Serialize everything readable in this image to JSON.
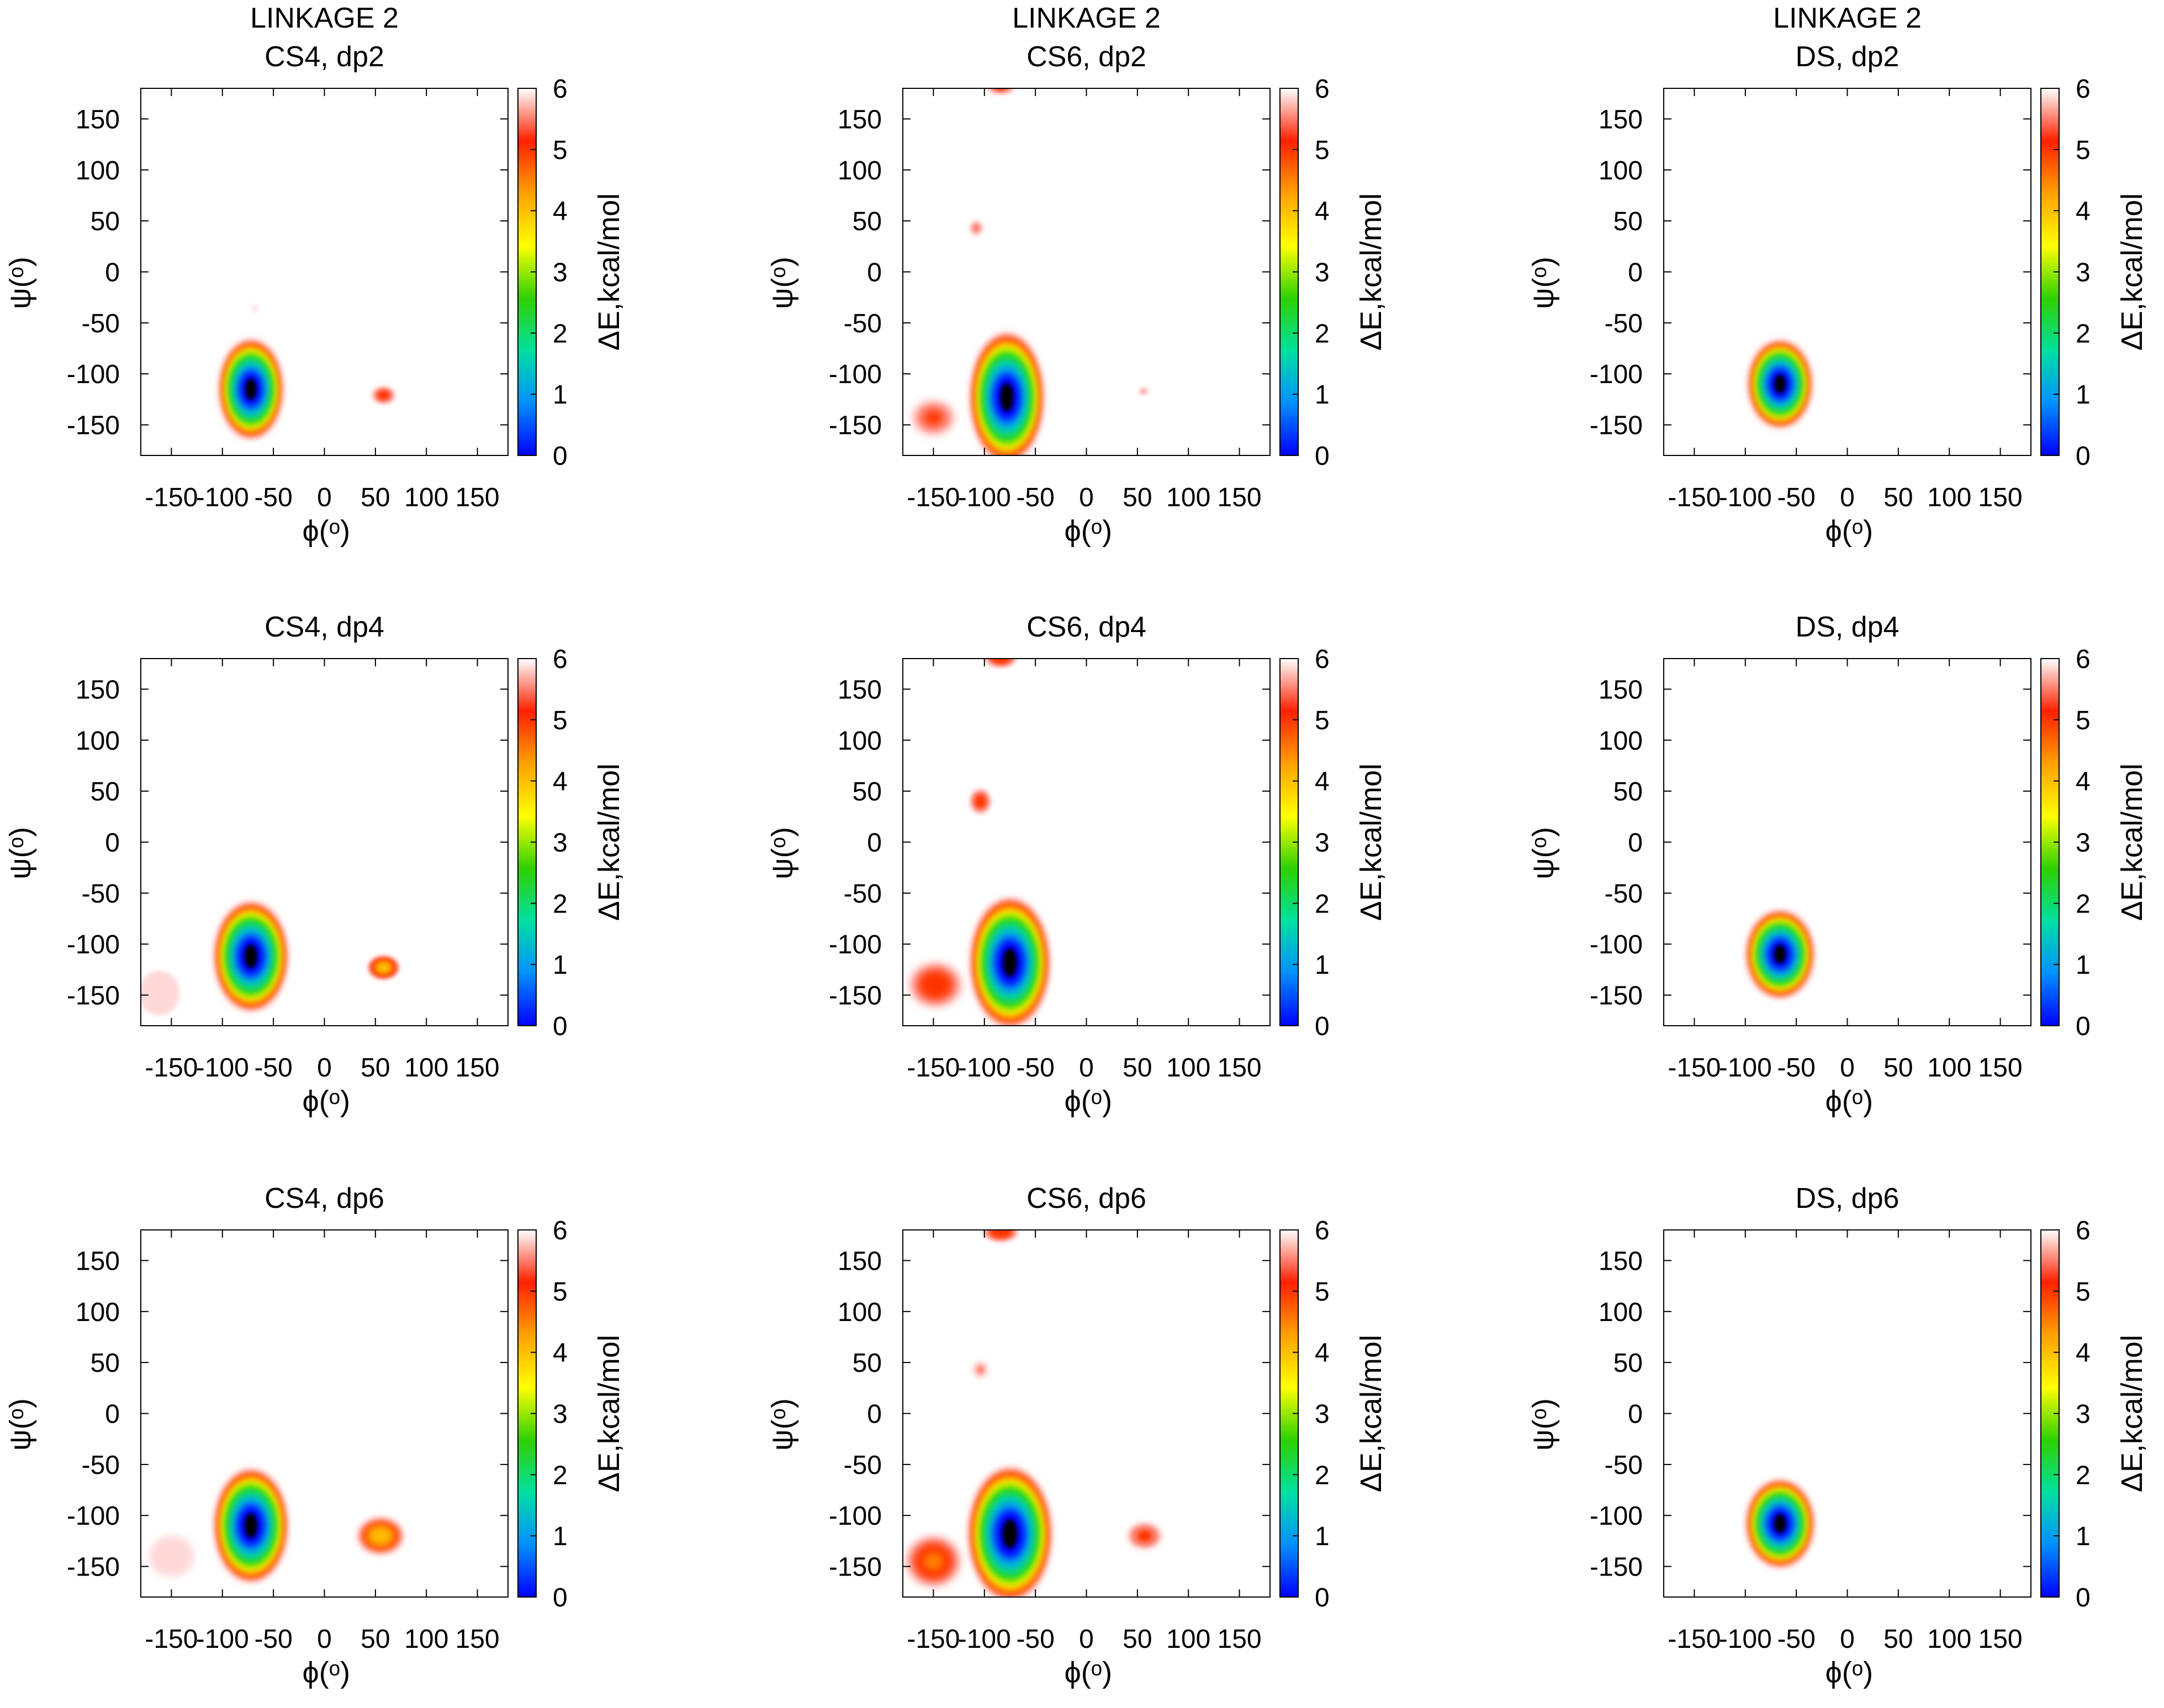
{
  "figure": {
    "colorbar": {
      "label": "ΔE,kcal/mol",
      "ticks": [
        "0",
        "1",
        "2",
        "3",
        "4",
        "5",
        "6"
      ],
      "range": [
        0,
        6
      ],
      "gradient": [
        "#0000ff",
        "#0090ff",
        "#00e0a0",
        "#30d000",
        "#ffff00",
        "#ffa000",
        "#ff2000",
        "#ffffff"
      ]
    }
  },
  "chart_data": [
    {
      "type": "heatmap",
      "title_lines": [
        "LINKAGE 2",
        "CS4, dp2"
      ],
      "xlabel": "ϕ(ᵒ)",
      "ylabel": "ψ(ᵒ)",
      "xlim": [
        -180,
        180
      ],
      "ylim": [
        -180,
        180
      ],
      "xticks": [
        -150,
        -100,
        -50,
        0,
        50,
        100,
        150
      ],
      "yticks": [
        -150,
        -100,
        -50,
        0,
        50,
        100,
        150
      ],
      "colorbar_label": "ΔE,kcal/mol",
      "zlim": [
        0,
        6
      ],
      "regions": [
        {
          "phi": -72,
          "psi": -115,
          "phi_half": 30,
          "psi_half": 48,
          "min_energy": 0.0
        },
        {
          "phi": 58,
          "psi": -121,
          "phi_half": 12,
          "psi_half": 9,
          "min_energy": 4.8
        },
        {
          "phi": -68,
          "psi": -36,
          "phi_half": 3,
          "psi_half": 3,
          "min_energy": 5.8
        }
      ]
    },
    {
      "type": "heatmap",
      "title_lines": [
        "LINKAGE 2",
        "CS6, dp2"
      ],
      "xlabel": "ϕ(ᵒ)",
      "ylabel": "ψ(ᵒ)",
      "xlim": [
        -180,
        180
      ],
      "ylim": [
        -180,
        180
      ],
      "xticks": [
        -150,
        -100,
        -50,
        0,
        50,
        100,
        150
      ],
      "yticks": [
        -150,
        -100,
        -50,
        0,
        50,
        100,
        150
      ],
      "colorbar_label": "ΔE,kcal/mol",
      "zlim": [
        0,
        6
      ],
      "regions": [
        {
          "phi": -78,
          "psi": -123,
          "phi_half": 35,
          "psi_half": 63,
          "min_energy": 0.0
        },
        {
          "phi": -150,
          "psi": -143,
          "phi_half": 22,
          "psi_half": 18,
          "min_energy": 4.9
        },
        {
          "phi": -84,
          "psi": 180,
          "phi_half": 14,
          "psi_half": 6,
          "min_energy": 5.0
        },
        {
          "phi": -108,
          "psi": 43,
          "phi_half": 7,
          "psi_half": 8,
          "min_energy": 5.3
        },
        {
          "phi": 56,
          "psi": -117,
          "phi_half": 5,
          "psi_half": 4,
          "min_energy": 5.4
        }
      ]
    },
    {
      "type": "heatmap",
      "title_lines": [
        "LINKAGE 2",
        "DS, dp2"
      ],
      "xlabel": "ϕ(ᵒ)",
      "ylabel": "ψ(ᵒ)",
      "xlim": [
        -180,
        180
      ],
      "ylim": [
        -180,
        180
      ],
      "xticks": [
        -150,
        -100,
        -50,
        0,
        50,
        100,
        150
      ],
      "yticks": [
        -150,
        -100,
        -50,
        0,
        50,
        100,
        150
      ],
      "colorbar_label": "ΔE,kcal/mol",
      "zlim": [
        0,
        6
      ],
      "regions": [
        {
          "phi": -66,
          "psi": -110,
          "phi_half": 30,
          "psi_half": 42,
          "min_energy": 0.0
        }
      ]
    },
    {
      "type": "heatmap",
      "title_lines": [
        "CS4, dp4"
      ],
      "xlabel": "ϕ(ᵒ)",
      "ylabel": "ψ(ᵒ)",
      "xlim": [
        -180,
        180
      ],
      "ylim": [
        -180,
        180
      ],
      "xticks": [
        -150,
        -100,
        -50,
        0,
        50,
        100,
        150
      ],
      "yticks": [
        -150,
        -100,
        -50,
        0,
        50,
        100,
        150
      ],
      "colorbar_label": "ΔE,kcal/mol",
      "zlim": [
        0,
        6
      ],
      "regions": [
        {
          "phi": -72,
          "psi": -112,
          "phi_half": 35,
          "psi_half": 53,
          "min_energy": 0.0
        },
        {
          "phi": 58,
          "psi": -123,
          "phi_half": 16,
          "psi_half": 12,
          "min_energy": 3.8
        },
        {
          "phi": -162,
          "psi": -148,
          "phi_half": 20,
          "psi_half": 22,
          "min_energy": 5.6
        }
      ]
    },
    {
      "type": "heatmap",
      "title_lines": [
        "CS6, dp4"
      ],
      "xlabel": "ϕ(ᵒ)",
      "ylabel": "ψ(ᵒ)",
      "xlim": [
        -180,
        180
      ],
      "ylim": [
        -180,
        180
      ],
      "xticks": [
        -150,
        -100,
        -50,
        0,
        50,
        100,
        150
      ],
      "yticks": [
        -150,
        -100,
        -50,
        0,
        50,
        100,
        150
      ],
      "colorbar_label": "ΔE,kcal/mol",
      "zlim": [
        0,
        6
      ],
      "regions": [
        {
          "phi": -75,
          "psi": -118,
          "phi_half": 38,
          "psi_half": 63,
          "min_energy": 0.0
        },
        {
          "phi": -148,
          "psi": -140,
          "phi_half": 27,
          "psi_half": 23,
          "min_energy": 4.6
        },
        {
          "phi": -84,
          "psi": 180,
          "phi_half": 16,
          "psi_half": 9,
          "min_energy": 4.6
        },
        {
          "phi": -104,
          "psi": 40,
          "phi_half": 11,
          "psi_half": 13,
          "min_energy": 4.8
        }
      ]
    },
    {
      "type": "heatmap",
      "title_lines": [
        "DS, dp4"
      ],
      "xlabel": "ϕ(ᵒ)",
      "ylabel": "ψ(ᵒ)",
      "xlim": [
        -180,
        180
      ],
      "ylim": [
        -180,
        180
      ],
      "xticks": [
        -150,
        -100,
        -50,
        0,
        50,
        100,
        150
      ],
      "yticks": [
        -150,
        -100,
        -50,
        0,
        50,
        100,
        150
      ],
      "colorbar_label": "ΔE,kcal/mol",
      "zlim": [
        0,
        6
      ],
      "regions": [
        {
          "phi": -66,
          "psi": -110,
          "phi_half": 32,
          "psi_half": 42,
          "min_energy": 0.0
        }
      ]
    },
    {
      "type": "heatmap",
      "title_lines": [
        "CS4, dp6"
      ],
      "xlabel": "ϕ(ᵒ)",
      "ylabel": "ψ(ᵒ)",
      "xlim": [
        -180,
        180
      ],
      "ylim": [
        -180,
        180
      ],
      "xticks": [
        -150,
        -100,
        -50,
        0,
        50,
        100,
        150
      ],
      "yticks": [
        -150,
        -100,
        -50,
        0,
        50,
        100,
        150
      ],
      "colorbar_label": "ΔE,kcal/mol",
      "zlim": [
        0,
        6
      ],
      "regions": [
        {
          "phi": -72,
          "psi": -110,
          "phi_half": 35,
          "psi_half": 55,
          "min_energy": 0.0
        },
        {
          "phi": 55,
          "psi": -120,
          "phi_half": 22,
          "psi_half": 17,
          "min_energy": 3.6
        },
        {
          "phi": -150,
          "psi": -140,
          "phi_half": 22,
          "psi_half": 20,
          "min_energy": 5.8
        }
      ]
    },
    {
      "type": "heatmap",
      "title_lines": [
        "CS6, dp6"
      ],
      "xlabel": "ϕ(ᵒ)",
      "ylabel": "ψ(ᵒ)",
      "xlim": [
        -180,
        180
      ],
      "ylim": [
        -180,
        180
      ],
      "xticks": [
        -150,
        -100,
        -50,
        0,
        50,
        100,
        150
      ],
      "yticks": [
        -150,
        -100,
        -50,
        0,
        50,
        100,
        150
      ],
      "colorbar_label": "ΔE,kcal/mol",
      "zlim": [
        0,
        6
      ],
      "regions": [
        {
          "phi": -75,
          "psi": -118,
          "phi_half": 40,
          "psi_half": 65,
          "min_energy": 0.0
        },
        {
          "phi": -150,
          "psi": -145,
          "phi_half": 28,
          "psi_half": 26,
          "min_energy": 4.4
        },
        {
          "phi": -84,
          "psi": 178,
          "phi_half": 18,
          "psi_half": 10,
          "min_energy": 4.6
        },
        {
          "phi": 57,
          "psi": -120,
          "phi_half": 18,
          "psi_half": 14,
          "min_energy": 4.9
        },
        {
          "phi": -104,
          "psi": 43,
          "phi_half": 8,
          "psi_half": 9,
          "min_energy": 5.4
        }
      ]
    },
    {
      "type": "heatmap",
      "title_lines": [
        "DS, dp6"
      ],
      "xlabel": "ϕ(ᵒ)",
      "ylabel": "ψ(ᵒ)",
      "xlim": [
        -180,
        180
      ],
      "ylim": [
        -180,
        180
      ],
      "xticks": [
        -150,
        -100,
        -50,
        0,
        50,
        100,
        150
      ],
      "yticks": [
        -150,
        -100,
        -50,
        0,
        50,
        100,
        150
      ],
      "colorbar_label": "ΔE,kcal/mol",
      "zlim": [
        0,
        6
      ],
      "regions": [
        {
          "phi": -66,
          "psi": -108,
          "phi_half": 32,
          "psi_half": 42,
          "min_energy": 0.0
        }
      ]
    }
  ]
}
